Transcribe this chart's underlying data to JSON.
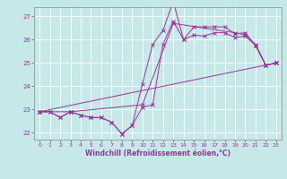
{
  "xlabel": "Windchill (Refroidissement éolien,°C)",
  "background_color": "#c6e8e8",
  "line_color": "#993399",
  "grid_color": "#ffffff",
  "xlim": [
    -0.5,
    23.5
  ],
  "ylim": [
    21.7,
    27.4
  ],
  "yticks": [
    22,
    23,
    24,
    25,
    26,
    27
  ],
  "xticks": [
    0,
    1,
    2,
    3,
    4,
    5,
    6,
    7,
    8,
    9,
    10,
    11,
    12,
    13,
    14,
    15,
    16,
    17,
    18,
    19,
    20,
    21,
    22,
    23
  ],
  "lines": [
    [
      0,
      22.9,
      1,
      22.9,
      2,
      22.65,
      3,
      22.9,
      4,
      22.75,
      5,
      22.65,
      6,
      22.65,
      7,
      22.45,
      8,
      21.95,
      9,
      22.3,
      10,
      23.1,
      11,
      23.2,
      12,
      25.8,
      13,
      26.8,
      14,
      26.0,
      15,
      26.2,
      16,
      26.15,
      17,
      26.3,
      18,
      26.3,
      19,
      26.1,
      20,
      26.15,
      21,
      25.75,
      22,
      24.9,
      23,
      25.0
    ],
    [
      0,
      22.9,
      1,
      22.9,
      2,
      22.65,
      3,
      22.9,
      4,
      22.75,
      5,
      22.65,
      6,
      22.65,
      7,
      22.45,
      8,
      21.95,
      9,
      22.3,
      10,
      24.1,
      11,
      25.8,
      12,
      26.4,
      13,
      27.65,
      14,
      26.0,
      15,
      26.55,
      16,
      26.55,
      17,
      26.55,
      18,
      26.55,
      19,
      26.25,
      20,
      26.3,
      21,
      25.75,
      22,
      24.9,
      23,
      25.0
    ],
    [
      0,
      22.9,
      3,
      22.9,
      10,
      23.2,
      13,
      26.7,
      19,
      26.3,
      20,
      26.2,
      21,
      25.8,
      22,
      24.9,
      23,
      25.0
    ],
    [
      0,
      22.9,
      23,
      25.0
    ]
  ]
}
